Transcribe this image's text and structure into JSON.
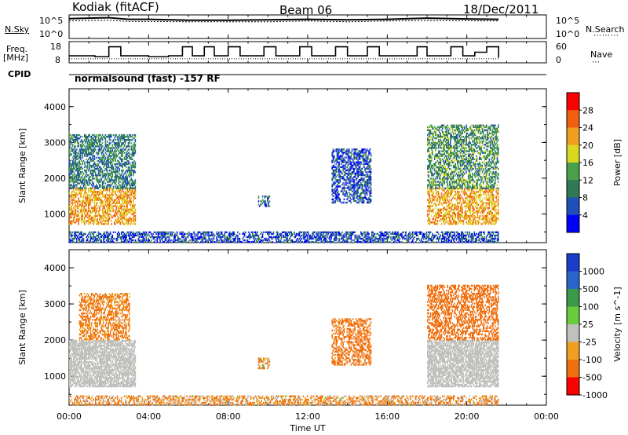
{
  "header": {
    "station": "Kodiak (fitACF)",
    "beam": "Beam 06",
    "date": "18/Dec/2011"
  },
  "side_labels": {
    "nsky": "N.Sky",
    "freq_line1": "Freq.",
    "freq_line2": "[MHz]",
    "cpid": "CPID",
    "nsearch": "N.Search",
    "nave": "Nave",
    "left_ticks_top": [
      "10^5",
      "10^0"
    ],
    "right_ticks_top": [
      "10^5",
      "10^0"
    ],
    "left_ticks_freq": [
      "18",
      "8"
    ],
    "right_ticks_nave": [
      "60",
      "0"
    ]
  },
  "cpid_text": "normalsound (fast) -157 RF",
  "colors": {
    "power_scale": [
      "#0000ff",
      "#1f4fb8",
      "#2f7a55",
      "#4aa04a",
      "#d8d820",
      "#f0a020",
      "#f06010",
      "#ff0000"
    ],
    "velocity_scale": [
      "#1a3cc8",
      "#2a64c8",
      "#3a9a4a",
      "#6acc3a",
      "#c0c0bc",
      "#f0a020",
      "#f07010",
      "#ff0000"
    ],
    "ground_scatter": "#c0c0bc"
  },
  "chart_data": [
    {
      "type": "line",
      "title": "",
      "xlabel": "",
      "ylabel": "N.Sky",
      "y_log": true,
      "ytick_labels": [
        "10^5",
        "10^0"
      ],
      "right_label": "N.Search",
      "right_tick_labels": [
        "10^5",
        "10^0"
      ],
      "xlim": [
        0,
        24
      ],
      "series": [
        {
          "name": "N.Sky",
          "x": [
            0,
            1,
            2,
            3,
            4,
            6,
            8,
            10,
            12,
            14,
            16,
            18,
            20,
            21.6
          ],
          "values": [
            30000,
            40000,
            50000,
            20000,
            20000,
            12000,
            12000,
            15000,
            20000,
            15000,
            20000,
            40000,
            25000,
            20000
          ]
        },
        {
          "name": "N.Search",
          "x": [
            0,
            1,
            2,
            3,
            4,
            6,
            8,
            10,
            12,
            14,
            16,
            18,
            20,
            21.6
          ],
          "values": [
            8000,
            10000,
            12000,
            6000,
            6000,
            5000,
            5000,
            5000,
            8000,
            5000,
            8000,
            10000,
            9000,
            8000
          ]
        }
      ]
    },
    {
      "type": "line",
      "title": "",
      "ylabel": "Freq. [MHz]",
      "ylim": [
        8,
        18
      ],
      "ytick_labels": [
        "18",
        "8"
      ],
      "right_label": "Nave",
      "right_ylim": [
        0,
        60
      ],
      "right_tick_labels": [
        "60",
        "0"
      ],
      "xlim": [
        0,
        24
      ],
      "series": [
        {
          "name": "Freq.",
          "x": [
            0,
            0.5,
            1.3,
            2.0,
            2.6,
            3.3,
            4.0,
            5.0,
            5.7,
            6.2,
            6.8,
            7.3,
            8.0,
            8.6,
            9.2,
            9.8,
            10.4,
            11.0,
            11.6,
            12.2,
            12.8,
            13.4,
            14.0,
            14.5,
            15.0,
            15.6,
            16.2,
            16.9,
            17.5,
            18.0,
            18.6,
            19.2,
            19.8,
            20.4,
            21.0,
            21.6
          ],
          "values": [
            11,
            11,
            10.5,
            16,
            11,
            11,
            10.5,
            11,
            16,
            11,
            16,
            11,
            16,
            11,
            11,
            16,
            11,
            11,
            16,
            11,
            11,
            16,
            11,
            11,
            16,
            11,
            11,
            11,
            16,
            11,
            11,
            16,
            11,
            13,
            16,
            10
          ]
        },
        {
          "name": "Nave",
          "x": [
            0,
            4,
            8,
            12,
            16,
            20,
            21.6
          ],
          "values": [
            8,
            8,
            8,
            8,
            8,
            8,
            8
          ]
        }
      ]
    },
    {
      "type": "heatmap",
      "title": "",
      "xlabel": "",
      "ylabel": "Slant Range [km]",
      "colorbar_label": "Power [dB]",
      "colorbar_ticks": [
        4,
        8,
        12,
        16,
        20,
        24,
        28
      ],
      "colorbar_range": [
        0,
        32
      ],
      "xlim": [
        0,
        24
      ],
      "ylim": [
        200,
        4500
      ],
      "xtick_labels": [
        "00:00",
        "04:00",
        "08:00",
        "12:00",
        "16:00",
        "20:00",
        "00:00"
      ],
      "ytick_labels": [
        "1000",
        "2000",
        "3000",
        "4000"
      ],
      "scatter_regions": [
        {
          "x": [
            0,
            3.3
          ],
          "range_km": [
            700,
            1700
          ],
          "level": "high",
          "value_db": 22
        },
        {
          "x": [
            0,
            3.3
          ],
          "range_km": [
            1700,
            3200
          ],
          "level": "medium",
          "value_db": 10
        },
        {
          "x": [
            9.5,
            10.1
          ],
          "range_km": [
            1200,
            1500
          ],
          "level": "low",
          "value_db": 8
        },
        {
          "x": [
            13.2,
            15.2
          ],
          "range_km": [
            1300,
            2800
          ],
          "level": "low",
          "value_db": 6
        },
        {
          "x": [
            18.0,
            21.6
          ],
          "range_km": [
            700,
            1700
          ],
          "level": "high",
          "value_db": 22
        },
        {
          "x": [
            18.0,
            21.6
          ],
          "range_km": [
            1700,
            3500
          ],
          "level": "medium",
          "value_db": 12
        },
        {
          "x": [
            0,
            21.6
          ],
          "range_km": [
            200,
            500
          ],
          "level": "low",
          "value_db": 6
        }
      ]
    },
    {
      "type": "heatmap",
      "title": "",
      "xlabel": "Time UT",
      "ylabel": "Slant Range [km]",
      "colorbar_label": "Velocity [m s^-1]",
      "colorbar_ticks": [
        1000,
        500,
        100,
        25,
        -25,
        -100,
        -500,
        -1000
      ],
      "xlim": [
        0,
        24
      ],
      "ylim": [
        200,
        4500
      ],
      "xtick_labels": [
        "00:00",
        "04:00",
        "08:00",
        "12:00",
        "16:00",
        "20:00",
        "00:00"
      ],
      "ytick_labels": [
        "1000",
        "2000",
        "3000",
        "4000"
      ],
      "scatter_regions": [
        {
          "x": [
            0,
            3.3
          ],
          "range_km": [
            700,
            2000
          ],
          "kind": "ground",
          "velocity": 0
        },
        {
          "x": [
            0.5,
            3.0
          ],
          "range_km": [
            2000,
            3300
          ],
          "kind": "ionospheric",
          "velocity": -150
        },
        {
          "x": [
            9.5,
            10.1
          ],
          "range_km": [
            1200,
            1500
          ],
          "kind": "ionospheric",
          "velocity": -80
        },
        {
          "x": [
            13.2,
            15.2
          ],
          "range_km": [
            1300,
            2600
          ],
          "kind": "ionospheric",
          "velocity": -200
        },
        {
          "x": [
            18.0,
            21.6
          ],
          "range_km": [
            700,
            2000
          ],
          "kind": "ground",
          "velocity": 0
        },
        {
          "x": [
            18.0,
            21.6
          ],
          "range_km": [
            2000,
            3500
          ],
          "kind": "ionospheric",
          "velocity": -300
        },
        {
          "x": [
            0,
            21.6
          ],
          "range_km": [
            200,
            450
          ],
          "kind": "ionospheric",
          "velocity": -100
        }
      ]
    }
  ]
}
